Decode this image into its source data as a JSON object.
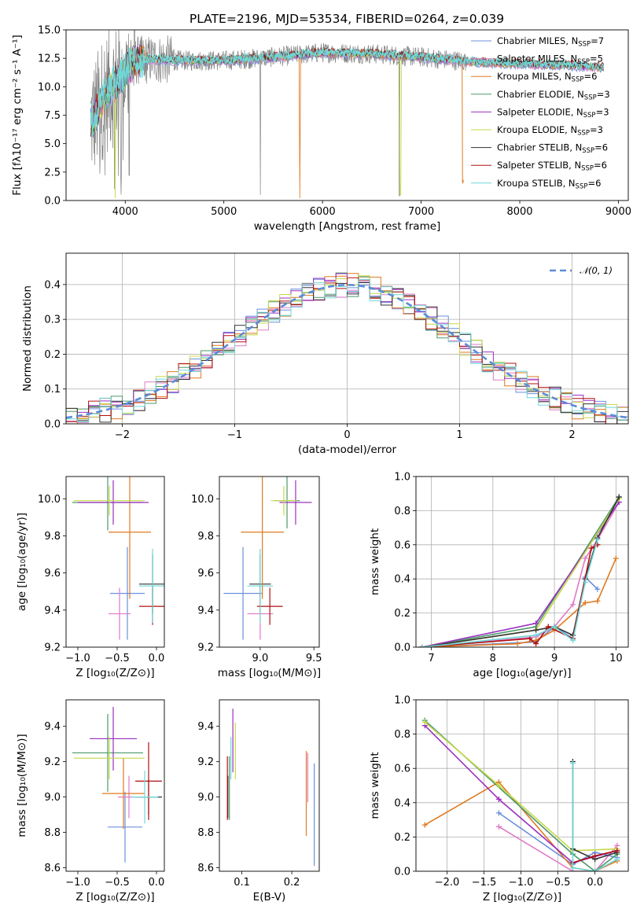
{
  "title": "PLATE=2196, MJD=53534, FIBERID=0264, z=0.039",
  "legend": [
    {
      "label": "Chabrier MILES, N",
      "sub": "SSP",
      "tail": "=7",
      "color": "#6a8fdc"
    },
    {
      "label": "Salpeter MILES, N",
      "sub": "SSP",
      "tail": "=5",
      "color": "#e07ac8"
    },
    {
      "label": "Kroupa MILES, N",
      "sub": "SSP",
      "tail": "=6",
      "color": "#e07a20"
    },
    {
      "label": "Chabrier ELODIE, N",
      "sub": "SSP",
      "tail": "=3",
      "color": "#4a9a6a"
    },
    {
      "label": "Salpeter ELODIE, N",
      "sub": "SSP",
      "tail": "=3",
      "color": "#9b30c0"
    },
    {
      "label": "Kroupa ELODIE, N",
      "sub": "SSP",
      "tail": "=3",
      "color": "#c8d84a"
    },
    {
      "label": "Chabrier STELIB, N",
      "sub": "SSP",
      "tail": "=6",
      "color": "#333333"
    },
    {
      "label": "Salpeter STELIB, N",
      "sub": "SSP",
      "tail": "=6",
      "color": "#b01010"
    },
    {
      "label": "Kroupa STELIB, N",
      "sub": "SSP",
      "tail": "=6",
      "color": "#70d8d8"
    }
  ],
  "hist_legend": "𝒩(0, 1)",
  "chart_data": [
    {
      "id": "spectrum",
      "type": "line",
      "xlabel": "wavelength [Angstrom, rest frame]",
      "ylabel": "Flux [fλ10⁻¹⁷ erg cm⁻² s⁻¹ A⁻¹]",
      "xlim": [
        3400,
        9100
      ],
      "ylim": [
        0,
        15
      ],
      "xticks": [
        4000,
        5000,
        6000,
        7000,
        8000,
        9000
      ],
      "yticks": [
        0.0,
        2.5,
        5.0,
        7.5,
        10.0,
        12.5,
        15.0
      ],
      "continuum": {
        "x": [
          3650,
          3700,
          3800,
          3900,
          4000,
          4100,
          4300,
          4600,
          5000,
          5500,
          6000,
          6500,
          7000,
          7500,
          8000,
          8500,
          8850
        ],
        "y": [
          7.0,
          7.5,
          9.5,
          10.2,
          11.4,
          12.3,
          12.4,
          12.3,
          12.3,
          12.6,
          13.0,
          12.9,
          12.6,
          12.2,
          12.0,
          11.9,
          11.7
        ]
      },
      "obs_xlim": [
        3650,
        7450
      ]
    },
    {
      "id": "residual_hist",
      "type": "bar",
      "xlabel": "(data-model)/error",
      "ylabel": "Normed distribution",
      "xlim": [
        -2.5,
        2.5
      ],
      "ylim": [
        0,
        0.49
      ],
      "xticks": [
        -2,
        -1,
        0,
        1,
        2
      ],
      "yticks": [
        0.0,
        0.1,
        0.2,
        0.3,
        0.4
      ],
      "bin_width": 0.1,
      "gaussian": {
        "mu": 0,
        "sigma": 1
      }
    },
    {
      "id": "age_vs_Z",
      "type": "scatter",
      "xlabel": "Z [log₁₀(Z/Z⊙)]",
      "ylabel": "age  [log₁₀(age/yr)]",
      "xlim": [
        -1.15,
        0.1
      ],
      "ylim": [
        9.2,
        10.12
      ],
      "xticks": [
        -1.0,
        -0.5,
        0.0
      ],
      "yticks": [
        9.2,
        9.4,
        9.6,
        9.8,
        10.0
      ],
      "points": [
        {
          "x": -0.05,
          "y": 9.54,
          "xerr": 0.17,
          "yerr": 0.16,
          "color": "#333333"
        },
        {
          "x": -0.37,
          "y": 9.49,
          "xerr": 0.22,
          "yerr": 0.25,
          "color": "#6a8fdc"
        },
        {
          "x": -0.47,
          "y": 9.38,
          "xerr": 0.14,
          "yerr": 0.14,
          "color": "#e07ac8"
        },
        {
          "x": -0.34,
          "y": 9.82,
          "xerr": 0.27,
          "yerr": 0.36,
          "color": "#e07a20"
        },
        {
          "x": -0.62,
          "y": 9.98,
          "xerr": 0.45,
          "yerr": 0.15,
          "color": "#4a9a6a"
        },
        {
          "x": -0.55,
          "y": 9.98,
          "xerr": 0.45,
          "yerr": 0.12,
          "color": "#9b30c0"
        },
        {
          "x": -0.6,
          "y": 9.99,
          "xerr": 0.45,
          "yerr": 0.08,
          "color": "#c8d84a"
        },
        {
          "x": -0.05,
          "y": 9.42,
          "xerr": 0.17,
          "yerr": 0.1,
          "color": "#b01010"
        },
        {
          "x": -0.05,
          "y": 9.53,
          "xerr": 0.17,
          "yerr": 0.2,
          "color": "#70d8d8"
        }
      ]
    },
    {
      "id": "age_vs_mass",
      "type": "scatter",
      "xlabel": "mass [log₁₀(M/M⊙)]",
      "ylabel": "",
      "xlim": [
        8.62,
        9.55
      ],
      "ylim": [
        9.2,
        10.12
      ],
      "xticks": [
        9.0,
        9.5
      ],
      "yticks": [
        9.2,
        9.4,
        9.6,
        9.8,
        10.0
      ],
      "points": [
        {
          "x": 9.0,
          "y": 9.54,
          "xerr": 0.1,
          "yerr": 0.16,
          "color": "#333333"
        },
        {
          "x": 8.84,
          "y": 9.49,
          "xerr": 0.18,
          "yerr": 0.25,
          "color": "#6a8fdc"
        },
        {
          "x": 9.0,
          "y": 9.38,
          "xerr": 0.12,
          "yerr": 0.14,
          "color": "#e07ac8"
        },
        {
          "x": 9.02,
          "y": 9.82,
          "xerr": 0.2,
          "yerr": 0.36,
          "color": "#e07a20"
        },
        {
          "x": 9.25,
          "y": 9.99,
          "xerr": 0.12,
          "yerr": 0.15,
          "color": "#4a9a6a"
        },
        {
          "x": 9.33,
          "y": 9.98,
          "xerr": 0.15,
          "yerr": 0.12,
          "color": "#9b30c0"
        },
        {
          "x": 9.22,
          "y": 9.99,
          "xerr": 0.12,
          "yerr": 0.08,
          "color": "#c8d84a"
        },
        {
          "x": 9.09,
          "y": 9.42,
          "xerr": 0.12,
          "yerr": 0.1,
          "color": "#b01010"
        },
        {
          "x": 9.0,
          "y": 9.53,
          "xerr": 0.12,
          "yerr": 0.2,
          "color": "#70d8d8"
        }
      ]
    },
    {
      "id": "mass_weight_vs_age",
      "type": "line",
      "xlabel": "age  [log₁₀(age/yr)]",
      "ylabel": "mass weight",
      "xlim": [
        6.75,
        10.2
      ],
      "ylim": [
        0,
        1.0
      ],
      "xticks": [
        7,
        8,
        9,
        10
      ],
      "yticks": [
        0.0,
        0.2,
        0.4,
        0.6,
        0.8,
        1.0
      ],
      "series": [
        {
          "color": "#6a8fdc",
          "x": [
            6.85,
            8.7,
            9.0,
            9.3,
            9.5,
            9.7
          ],
          "y": [
            0.0,
            0.03,
            0.12,
            0.05,
            0.41,
            0.34
          ]
        },
        {
          "color": "#e07ac8",
          "x": [
            6.85,
            8.7,
            9.0,
            9.3,
            9.5,
            9.7,
            10.05
          ],
          "y": [
            0.0,
            0.06,
            0.12,
            0.25,
            0.52,
            0.63,
            0.85
          ]
        },
        {
          "color": "#e07a20",
          "x": [
            6.85,
            8.4,
            8.7,
            9.0,
            9.5,
            9.7,
            10.0
          ],
          "y": [
            0.0,
            0.02,
            0.04,
            0.1,
            0.26,
            0.27,
            0.52
          ]
        },
        {
          "color": "#4a9a6a",
          "x": [
            6.85,
            8.7,
            10.05
          ],
          "y": [
            0.0,
            0.12,
            0.88
          ]
        },
        {
          "color": "#9b30c0",
          "x": [
            6.85,
            8.7,
            10.05
          ],
          "y": [
            0.0,
            0.14,
            0.85
          ]
        },
        {
          "color": "#c8d84a",
          "x": [
            6.85,
            8.7,
            10.05
          ],
          "y": [
            0.0,
            0.1,
            0.87
          ]
        },
        {
          "color": "#333333",
          "x": [
            6.85,
            8.7,
            9.0,
            9.3,
            9.5,
            9.7,
            10.05
          ],
          "y": [
            0.0,
            0.1,
            0.12,
            0.07,
            0.4,
            0.64,
            0.88
          ]
        },
        {
          "color": "#b01010",
          "x": [
            6.85,
            8.6,
            8.7,
            8.9,
            9.3,
            9.6,
            9.7
          ],
          "y": [
            0.0,
            0.05,
            0.02,
            0.12,
            0.05,
            0.58,
            0.6
          ]
        },
        {
          "color": "#70d8d8",
          "x": [
            6.85,
            8.7,
            9.0,
            9.3,
            9.5,
            9.7
          ],
          "y": [
            0.0,
            0.07,
            0.12,
            0.04,
            0.38,
            0.63
          ]
        }
      ]
    },
    {
      "id": "mass_vs_Z",
      "type": "scatter",
      "xlabel": "Z [log₁₀(Z/Z⊙)]",
      "ylabel": "mass [log₁₀(M/M⊙)]",
      "xlim": [
        -1.15,
        0.1
      ],
      "ylim": [
        8.58,
        9.55
      ],
      "xticks": [
        -1.0,
        -0.5,
        0.0
      ],
      "yticks": [
        8.6,
        8.8,
        9.0,
        9.2,
        9.4
      ],
      "points": [
        {
          "x": -0.1,
          "y": 9.0,
          "xerr": 0.17,
          "yerr": 0.1,
          "color": "#333333"
        },
        {
          "x": -0.4,
          "y": 8.83,
          "xerr": 0.22,
          "yerr": 0.2,
          "color": "#6a8fdc"
        },
        {
          "x": -0.35,
          "y": 9.0,
          "xerr": 0.14,
          "yerr": 0.12,
          "color": "#e07ac8"
        },
        {
          "x": -0.42,
          "y": 9.02,
          "xerr": 0.27,
          "yerr": 0.2,
          "color": "#e07a20"
        },
        {
          "x": -0.62,
          "y": 9.25,
          "xerr": 0.45,
          "yerr": 0.22,
          "color": "#4a9a6a"
        },
        {
          "x": -0.55,
          "y": 9.33,
          "xerr": 0.3,
          "yerr": 0.18,
          "color": "#9b30c0"
        },
        {
          "x": -0.6,
          "y": 9.22,
          "xerr": 0.45,
          "yerr": 0.12,
          "color": "#c8d84a"
        },
        {
          "x": -0.1,
          "y": 9.09,
          "xerr": 0.17,
          "yerr": 0.22,
          "color": "#b01010"
        },
        {
          "x": -0.15,
          "y": 9.0,
          "xerr": 0.17,
          "yerr": 0.15,
          "color": "#70d8d8"
        }
      ]
    },
    {
      "id": "mass_vs_ebv",
      "type": "scatter",
      "xlabel": "E(B-V)",
      "ylabel": "",
      "xlim": [
        0.055,
        0.255
      ],
      "ylim": [
        8.58,
        9.55
      ],
      "xticks": [
        0.1,
        0.2
      ],
      "yticks": [
        8.6,
        8.8,
        9.0,
        9.2,
        9.4
      ],
      "points": [
        {
          "x": 0.072,
          "y": 9.0,
          "xerr": 0,
          "yerr": 0.12,
          "color": "#333333"
        },
        {
          "x": 0.245,
          "y": 8.9,
          "xerr": 0,
          "yerr": 0.29,
          "color": "#6a8fdc"
        },
        {
          "x": 0.232,
          "y": 9.11,
          "xerr": 0,
          "yerr": 0.14,
          "color": "#e07ac8"
        },
        {
          "x": 0.229,
          "y": 9.02,
          "xerr": 0,
          "yerr": 0.24,
          "color": "#e07a20"
        },
        {
          "x": 0.075,
          "y": 9.05,
          "xerr": 0,
          "yerr": 0.18,
          "color": "#4a9a6a"
        },
        {
          "x": 0.082,
          "y": 9.32,
          "xerr": 0,
          "yerr": 0.18,
          "color": "#9b30c0"
        },
        {
          "x": 0.087,
          "y": 9.26,
          "xerr": 0,
          "yerr": 0.16,
          "color": "#c8d84a"
        },
        {
          "x": 0.071,
          "y": 9.05,
          "xerr": 0,
          "yerr": 0.18,
          "color": "#b01010"
        },
        {
          "x": 0.078,
          "y": 9.22,
          "xerr": 0,
          "yerr": 0.12,
          "color": "#70d8d8"
        }
      ]
    },
    {
      "id": "mass_weight_vs_Z",
      "type": "line",
      "xlabel": "Z [log₁₀(Z/Z⊙)]",
      "ylabel": "mass weight",
      "xlim": [
        -2.42,
        0.45
      ],
      "ylim": [
        0,
        1.0
      ],
      "xticks": [
        -2.0,
        -1.5,
        -1.0,
        -0.5,
        0.0
      ],
      "yticks": [
        0.0,
        0.2,
        0.4,
        0.6,
        0.8,
        1.0
      ],
      "series": [
        {
          "color": "#6a8fdc",
          "x": [
            -1.3,
            -0.3,
            0.0,
            0.3
          ],
          "y": [
            0.34,
            0.04,
            0.11,
            0.08
          ]
        },
        {
          "color": "#e07ac8",
          "x": [
            -1.3,
            -0.3,
            0.0,
            0.3
          ],
          "y": [
            0.26,
            0.0,
            0.0,
            0.15
          ]
        },
        {
          "color": "#e07a20",
          "x": [
            -2.3,
            -1.3,
            -0.3,
            0.0,
            0.3
          ],
          "y": [
            0.27,
            0.52,
            0.02,
            0.0,
            0.06
          ]
        },
        {
          "color": "#4a9a6a",
          "x": [
            -2.3,
            -0.3,
            0.0,
            0.3
          ],
          "y": [
            0.88,
            0.1,
            0.0,
            0.1
          ]
        },
        {
          "color": "#9b30c0",
          "x": [
            -2.3,
            -1.3,
            -0.3,
            0.3
          ],
          "y": [
            0.85,
            0.42,
            0.05,
            0.12
          ]
        },
        {
          "color": "#c8d84a",
          "x": [
            -2.3,
            -1.3,
            -0.3,
            0.3
          ],
          "y": [
            0.87,
            0.5,
            0.12,
            0.13
          ]
        },
        {
          "color": "#333333",
          "x": [
            -0.3,
            -0.3,
            0.0,
            0.3
          ],
          "y": [
            0.64,
            0.13,
            0.07,
            0.11
          ]
        },
        {
          "color": "#b01010",
          "x": [
            -0.3,
            0.0,
            0.3
          ],
          "y": [
            0.05,
            0.09,
            0.12
          ]
        },
        {
          "color": "#70d8d8",
          "x": [
            -0.3,
            -0.3,
            0.0,
            0.3
          ],
          "y": [
            0.63,
            0.02,
            0.0,
            0.07
          ]
        }
      ]
    }
  ]
}
